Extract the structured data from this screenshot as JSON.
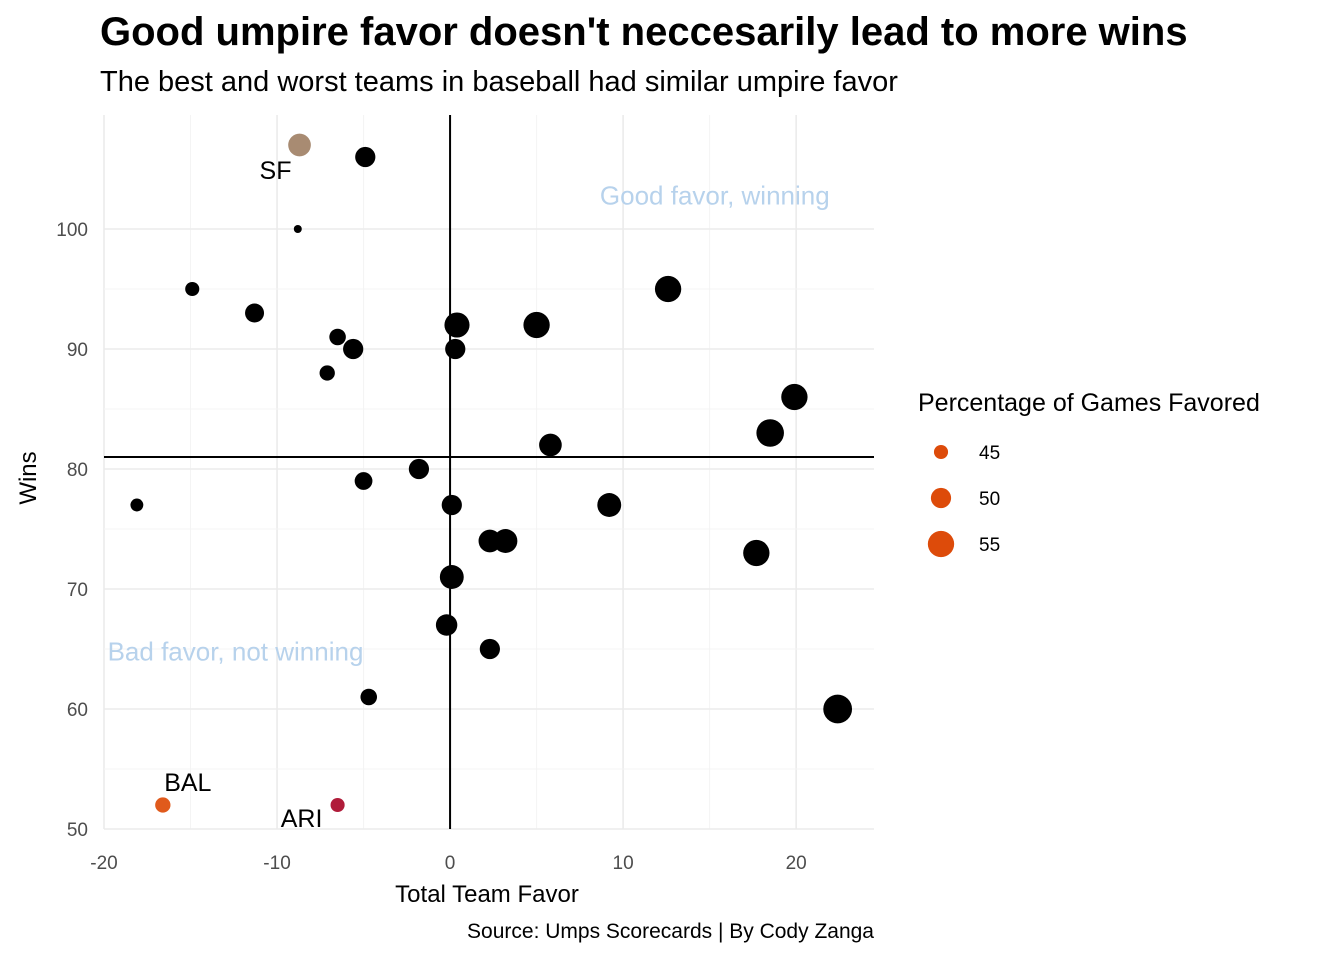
{
  "chart_data": {
    "type": "scatter",
    "title": "Good umpire favor doesn't neccesarily lead to more wins",
    "subtitle": "The best and worst teams in baseball had similar umpire favor",
    "caption": "Source: Umps Scorecards | By Cody Zanga",
    "xlabel": "Total Team Favor",
    "ylabel": "Wins",
    "xlim": [
      -20,
      24.5
    ],
    "ylim": [
      50,
      109.5
    ],
    "x_ticks": [
      -20,
      -10,
      0,
      10,
      20
    ],
    "x_tick_labels": [
      "-20",
      "-10",
      "0",
      "10",
      "20"
    ],
    "y_ticks": [
      50,
      60,
      70,
      80,
      90,
      100
    ],
    "y_tick_labels": [
      "50",
      "60",
      "70",
      "80",
      "90",
      "100"
    ],
    "grid": true,
    "reference_lines": {
      "x": 0,
      "y": 81
    },
    "size_variable": "Percentage of Games Favored",
    "size_range": [
      40,
      58
    ],
    "points": [
      {
        "x": -8.7,
        "y": 107,
        "size": 52,
        "color": "#a88b72",
        "label": "SF"
      },
      {
        "x": -4.9,
        "y": 106,
        "size": 50,
        "color": "#000000",
        "label": ""
      },
      {
        "x": -8.8,
        "y": 100,
        "size": 40,
        "color": "#000000",
        "label": ""
      },
      {
        "x": -14.9,
        "y": 95,
        "size": 45,
        "color": "#000000",
        "label": ""
      },
      {
        "x": -11.3,
        "y": 93,
        "size": 49,
        "color": "#000000",
        "label": ""
      },
      {
        "x": -6.5,
        "y": 91,
        "size": 47,
        "color": "#000000",
        "label": ""
      },
      {
        "x": -5.6,
        "y": 90,
        "size": 50,
        "color": "#000000",
        "label": ""
      },
      {
        "x": -7.1,
        "y": 88,
        "size": 46,
        "color": "#000000",
        "label": ""
      },
      {
        "x": 0.4,
        "y": 92,
        "size": 54,
        "color": "#000000",
        "label": ""
      },
      {
        "x": 0.3,
        "y": 90,
        "size": 50,
        "color": "#000000",
        "label": ""
      },
      {
        "x": 5.0,
        "y": 92,
        "size": 55,
        "color": "#000000",
        "label": ""
      },
      {
        "x": 12.6,
        "y": 95,
        "size": 55,
        "color": "#000000",
        "label": ""
      },
      {
        "x": 19.9,
        "y": 86,
        "size": 55,
        "color": "#000000",
        "label": ""
      },
      {
        "x": 18.5,
        "y": 83,
        "size": 56,
        "color": "#000000",
        "label": ""
      },
      {
        "x": 5.8,
        "y": 82,
        "size": 52,
        "color": "#000000",
        "label": ""
      },
      {
        "x": -1.8,
        "y": 80,
        "size": 50,
        "color": "#000000",
        "label": ""
      },
      {
        "x": -5.0,
        "y": 79,
        "size": 48,
        "color": "#000000",
        "label": ""
      },
      {
        "x": -18.1,
        "y": 77,
        "size": 44,
        "color": "#000000",
        "label": ""
      },
      {
        "x": 0.1,
        "y": 77,
        "size": 50,
        "color": "#000000",
        "label": ""
      },
      {
        "x": 9.2,
        "y": 77,
        "size": 53,
        "color": "#000000",
        "label": ""
      },
      {
        "x": 2.3,
        "y": 74,
        "size": 52,
        "color": "#000000",
        "label": ""
      },
      {
        "x": 3.2,
        "y": 74,
        "size": 53,
        "color": "#000000",
        "label": ""
      },
      {
        "x": 17.7,
        "y": 73,
        "size": 55,
        "color": "#000000",
        "label": ""
      },
      {
        "x": 0.1,
        "y": 71,
        "size": 53,
        "color": "#000000",
        "label": ""
      },
      {
        "x": -0.2,
        "y": 67,
        "size": 51,
        "color": "#000000",
        "label": ""
      },
      {
        "x": 2.3,
        "y": 65,
        "size": 50,
        "color": "#000000",
        "label": ""
      },
      {
        "x": -4.7,
        "y": 61,
        "size": 47,
        "color": "#000000",
        "label": ""
      },
      {
        "x": 22.4,
        "y": 60,
        "size": 57,
        "color": "#000000",
        "label": ""
      },
      {
        "x": -16.6,
        "y": 52,
        "size": 46,
        "color": "#e05a1c",
        "label": "BAL"
      },
      {
        "x": -6.5,
        "y": 52,
        "size": 45,
        "color": "#b01c3a",
        "label": "ARI"
      }
    ],
    "annotations": [
      {
        "text": "Good favor, winning",
        "x": 15.3,
        "y": 102.8
      },
      {
        "text": "Bad favor, not winning",
        "x": -12.4,
        "y": 64.8
      }
    ],
    "legend": {
      "title": "Percentage of Games Favored",
      "placement": "right",
      "color": "#dd4b0a",
      "entries": [
        {
          "label": "45",
          "size": 45
        },
        {
          "label": "50",
          "size": 50
        },
        {
          "label": "55",
          "size": 55
        }
      ]
    }
  }
}
